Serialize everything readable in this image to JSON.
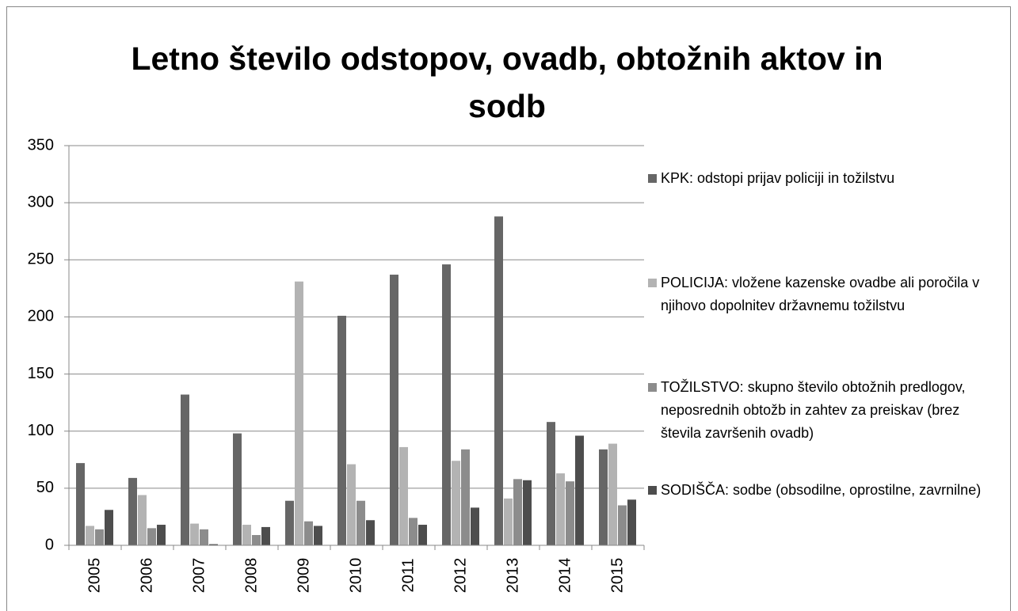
{
  "chart_data": {
    "type": "bar",
    "title": "Letno število odstopov, ovadb, obtožnih aktov in sodb",
    "categories": [
      "2005",
      "2006",
      "2007",
      "2008",
      "2009",
      "2010",
      "2011",
      "2012",
      "2013",
      "2014",
      "2015"
    ],
    "series": [
      {
        "name": "KPK: odstopi prijav policiji in tožilstvu",
        "color": "#666666",
        "values": [
          72,
          59,
          132,
          98,
          39,
          201,
          237,
          246,
          288,
          108,
          84
        ]
      },
      {
        "name": "POLICIJA: vložene kazenske ovadbe ali poročila v njihovo dopolnitev državnemu tožilstvu",
        "color": "#b3b3b3",
        "values": [
          17,
          44,
          19,
          18,
          231,
          71,
          86,
          74,
          41,
          63,
          89
        ]
      },
      {
        "name": "TOŽILSTVO: skupno število obtožnih predlogov, neposrednih obtožb in zahtev za preiskav (brez števila završenih ovadb)",
        "color": "#8c8c8c",
        "values": [
          14,
          15,
          14,
          9,
          21,
          39,
          24,
          84,
          58,
          56,
          35
        ]
      },
      {
        "name": "SODIŠČA: sodbe (obsodilne, oprostilne, zavrnilne)",
        "color": "#4d4d4d",
        "values": [
          31,
          18,
          1,
          16,
          17,
          22,
          18,
          33,
          57,
          96,
          40
        ]
      }
    ],
    "ylim": [
      0,
      350
    ],
    "yticks": [
      0,
      50,
      100,
      150,
      200,
      250,
      300,
      350
    ],
    "grid": true,
    "legend": "right"
  }
}
